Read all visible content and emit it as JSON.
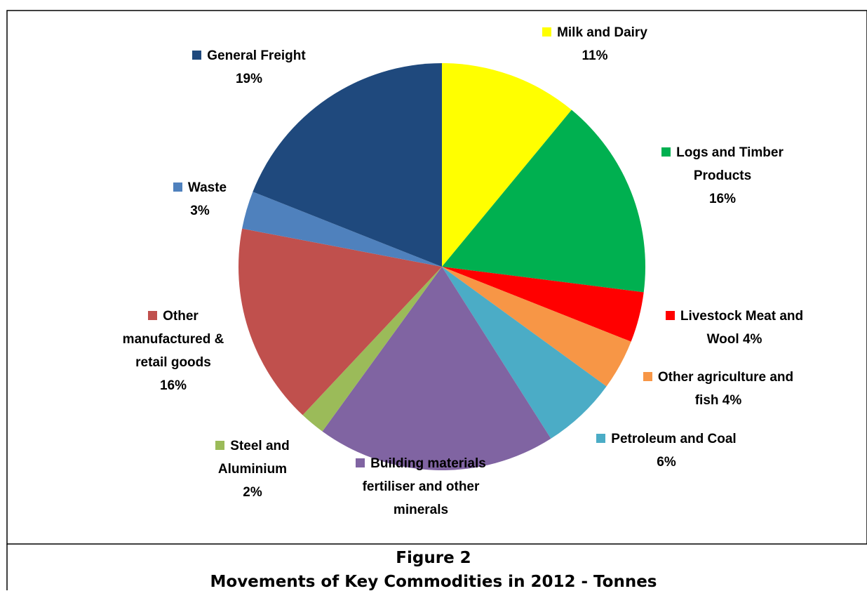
{
  "chart_data": {
    "type": "pie",
    "title": "Figure 2",
    "subtitle": "Movements of Key Commodities in 2012  - Tonnes",
    "categories": [
      "Milk and Dairy",
      "Logs and Timber Products",
      "Livestock  Meat and Wool",
      "Other agriculture and fish",
      "Petroleum and Coal",
      "Building materials fertiliser and other minerals",
      "Steel and Aluminium",
      "Other manufactured & retail goods",
      "Waste",
      "General Freight"
    ],
    "values": [
      11,
      16,
      4,
      4,
      6,
      19,
      2,
      16,
      3,
      19
    ],
    "value_labels": [
      "11%",
      "16%",
      "4%",
      "4%",
      "6%",
      null,
      "2%",
      "16%",
      "3%",
      "19%"
    ],
    "colors": [
      "#ffff00",
      "#00b050",
      "#ff0000",
      "#f79646",
      "#4bacc6",
      "#8064a2",
      "#9bbb59",
      "#c0504d",
      "#4f81bd",
      "#1f497d"
    ]
  }
}
